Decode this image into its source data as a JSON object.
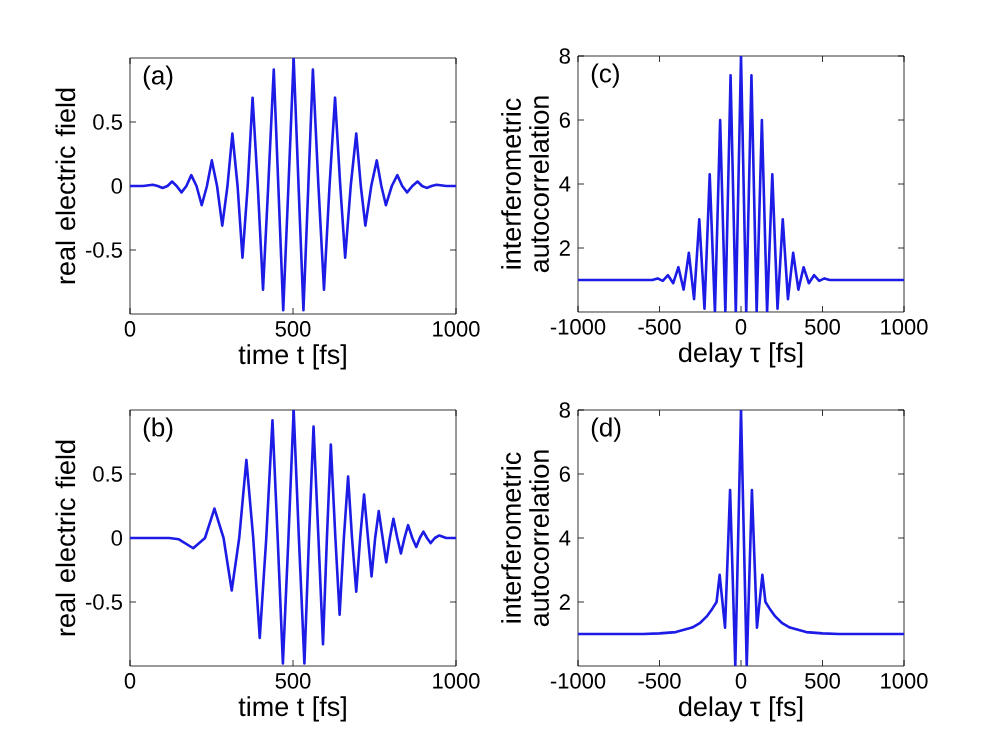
{
  "chart_data": [
    {
      "type": "line",
      "xlabel": "time t [fs]",
      "ylabel": "real electric field",
      "annotations": [
        "(a)"
      ],
      "xlim": [
        0,
        1000
      ],
      "ylim": [
        -1,
        1
      ],
      "xticks": [
        0,
        500,
        1000
      ],
      "yticks": [
        -0.5,
        0,
        0.5
      ],
      "grid": false,
      "line_style": "solid",
      "series": [
        {
          "color": "#1c1ce6",
          "x": [
            0,
            40,
            70,
            85,
            100,
            115,
            129,
            143,
            158,
            173,
            188,
            204,
            220,
            236,
            251,
            267,
            283,
            299,
            314,
            330,
            345,
            361,
            376,
            392,
            408,
            424,
            441,
            455,
            470,
            486,
            502,
            517,
            532,
            547,
            561,
            578,
            595,
            612,
            629,
            645,
            660,
            677,
            694,
            708,
            722,
            740,
            757,
            771,
            785,
            803,
            820,
            835,
            850,
            866,
            882,
            896,
            910,
            925,
            940,
            970,
            1000
          ],
          "values": [
            0,
            0,
            0.01,
            0,
            -0.015,
            0,
            0.035,
            0,
            -0.05,
            0,
            0.085,
            0,
            -0.15,
            0,
            0.2,
            0,
            -0.31,
            0,
            0.41,
            0,
            -0.56,
            0,
            0.69,
            0,
            -0.81,
            0,
            0.91,
            0,
            -0.97,
            0,
            1.0,
            0,
            -0.97,
            0,
            0.91,
            0,
            -0.81,
            0,
            0.69,
            0,
            -0.56,
            0,
            0.41,
            0,
            -0.31,
            0,
            0.2,
            0,
            -0.15,
            0,
            0.085,
            0,
            -0.05,
            0,
            0.035,
            0,
            -0.015,
            0,
            0.01,
            0,
            0
          ]
        }
      ]
    },
    {
      "type": "line",
      "xlabel": "delay τ [fs]",
      "ylabel": "interferometric autocorrelation",
      "annotations": [
        "(c)"
      ],
      "xlim": [
        -1000,
        1000
      ],
      "ylim": [
        0,
        8
      ],
      "xticks": [
        -1000,
        -500,
        0,
        500,
        1000
      ],
      "yticks": [
        2,
        4,
        6,
        8
      ],
      "grid": false,
      "line_style": "solid",
      "series": [
        {
          "color": "#1c1ce6",
          "x": [
            -1000,
            -600,
            -544,
            -512,
            -480,
            -448,
            -416,
            -384,
            -352,
            -320,
            -288,
            -256,
            -224,
            -192,
            -160,
            -128,
            -96,
            -64,
            -32,
            0,
            32,
            64,
            96,
            128,
            160,
            192,
            224,
            256,
            288,
            320,
            352,
            384,
            416,
            448,
            480,
            512,
            544,
            600,
            1000
          ],
          "values": [
            1,
            1,
            1,
            1.05,
            0.97,
            1.15,
            0.9,
            1.4,
            0.7,
            1.85,
            0.4,
            2.9,
            0.1,
            4.3,
            0,
            6.0,
            0,
            7.4,
            0,
            8,
            0,
            7.4,
            0,
            6.0,
            0,
            4.3,
            0.1,
            2.9,
            0.4,
            1.85,
            0.7,
            1.4,
            0.9,
            1.15,
            0.97,
            1.05,
            1,
            1,
            1
          ]
        }
      ]
    },
    {
      "type": "line",
      "xlabel": "time t [fs]",
      "ylabel": "real electric field",
      "annotations": [
        "(b)"
      ],
      "xlim": [
        0,
        1000
      ],
      "ylim": [
        -1,
        1
      ],
      "xticks": [
        0,
        500,
        1000
      ],
      "yticks": [
        -0.5,
        0,
        0.5
      ],
      "grid": false,
      "line_style": "solid",
      "series": [
        {
          "color": "#1c1ce6",
          "x": [
            0,
            120,
            150,
            194,
            230,
            259,
            287,
            312,
            335,
            357,
            378,
            398,
            418,
            437,
            453,
            469,
            486,
            502,
            518,
            535,
            549,
            563,
            578,
            592,
            604,
            616,
            630,
            643,
            656,
            669,
            681,
            694,
            706,
            718,
            730,
            741,
            752,
            763,
            775,
            786,
            797,
            808,
            820,
            831,
            842,
            853,
            866,
            878,
            889,
            900,
            911,
            922,
            935,
            949,
            970,
            1000
          ],
          "values": [
            0,
            0,
            -0.01,
            -0.08,
            0,
            0.23,
            0,
            -0.41,
            0,
            0.61,
            0,
            -0.78,
            0,
            0.92,
            0,
            -0.98,
            0,
            1.0,
            0,
            -0.98,
            0,
            0.87,
            0,
            -0.83,
            0,
            0.73,
            0,
            -0.6,
            0,
            0.48,
            0,
            -0.42,
            0,
            0.34,
            0,
            -0.3,
            0,
            0.21,
            0,
            -0.19,
            0,
            0.15,
            0,
            -0.12,
            0,
            0.1,
            0,
            -0.07,
            0,
            0.05,
            0,
            -0.04,
            0,
            0.02,
            0,
            0
          ]
        }
      ]
    },
    {
      "type": "line",
      "xlabel": "delay τ [fs]",
      "ylabel": "interferometric autocorrelation",
      "annotations": [
        "(d)"
      ],
      "xlim": [
        -1000,
        1000
      ],
      "ylim": [
        0,
        8
      ],
      "xticks": [
        -1000,
        -500,
        0,
        500,
        1000
      ],
      "yticks": [
        2,
        4,
        6,
        8
      ],
      "grid": false,
      "line_style": "solid",
      "series": [
        {
          "color": "#1c1ce6",
          "x": [
            -1000,
            -600,
            -500,
            -400,
            -300,
            -250,
            -210,
            -175,
            -150,
            -131,
            -98,
            -67,
            -35,
            0,
            35,
            67,
            98,
            131,
            150,
            175,
            210,
            250,
            300,
            400,
            500,
            600,
            1000
          ],
          "values": [
            1,
            1,
            1.02,
            1.06,
            1.2,
            1.35,
            1.55,
            1.8,
            2.0,
            2.85,
            1.2,
            5.5,
            0,
            8,
            0,
            5.5,
            1.2,
            2.85,
            2.0,
            1.8,
            1.55,
            1.35,
            1.2,
            1.06,
            1.02,
            1,
            1
          ]
        }
      ]
    }
  ]
}
